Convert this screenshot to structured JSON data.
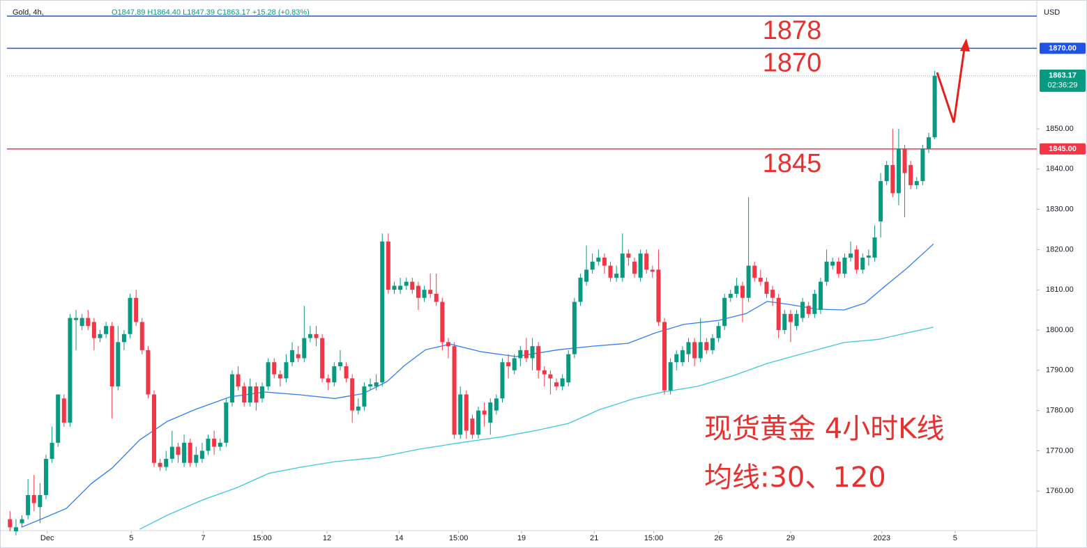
{
  "chart_data": {
    "type": "candlestick",
    "title": "Gold, 4h,",
    "ohlc_header": "O1847.89 H1864.40 L1847.39 C1863.17 +15.28 (+0.83%)",
    "currency": "USD",
    "countdown": "02:36:29",
    "up_color": "#089981",
    "down_color": "#f23645",
    "open": [
      1753,
      1750,
      1752,
      1754,
      1759,
      1756,
      1759,
      1768,
      1772,
      1783,
      1777,
      1802.5,
      1801,
      1803,
      1802,
      1798,
      1799,
      1801,
      1786,
      1797,
      1799,
      1808,
      1802,
      1795,
      1784,
      1767,
      1766,
      1768,
      1771,
      1767,
      1772,
      1767,
      1768,
      1770,
      1773,
      1771,
      1772,
      1782,
      1789,
      1786,
      1782,
      1786,
      1783,
      1786,
      1792,
      1789,
      1788,
      1792,
      1794,
      1793,
      1798,
      1799,
      1798,
      1788,
      1787,
      1791,
      1791,
      1788,
      1780,
      1781,
      1786,
      1786,
      1787,
      1822,
      1810,
      1810,
      1811,
      1812,
      1811,
      1808,
      1810,
      1809,
      1807,
      1797,
      1796,
      1774,
      1784,
      1778,
      1774,
      1780,
      1777,
      1780,
      1783,
      1792,
      1790,
      1793,
      1795,
      1793,
      1796,
      1790,
      1789,
      1787,
      1786,
      1787,
      1794,
      1807,
      1812,
      1815,
      1817,
      1818,
      1816,
      1813,
      1813,
      1819,
      1817,
      1813,
      1819,
      1815,
      1815,
      1802,
      1785,
      1792,
      1792,
      1794,
      1797,
      1793,
      1797,
      1795,
      1798,
      1801,
      1808,
      1809,
      1811,
      1808,
      1816,
      1813,
      1812,
      1810,
      1808,
      1800,
      1804,
      1801,
      1803,
      1806,
      1804,
      1805,
      1812,
      1816,
      1817,
      1814,
      1818,
      1820,
      1815,
      1818,
      1818,
      1827,
      1837,
      1841,
      1834,
      1845,
      1841,
      1836,
      1837,
      1845,
      1847.89
    ],
    "high": [
      1755,
      1753,
      1754,
      1763,
      1764,
      1762,
      1769,
      1776,
      1784,
      1784,
      1804,
      1805,
      1804,
      1805,
      1803,
      1800,
      1802,
      1802,
      1801,
      1800,
      1809,
      1810,
      1803,
      1796,
      1785,
      1768,
      1770,
      1775,
      1772,
      1774,
      1773,
      1771,
      1772,
      1774,
      1775,
      1773,
      1783,
      1790,
      1791,
      1787,
      1788,
      1787,
      1787,
      1793,
      1793,
      1790,
      1794,
      1797,
      1796,
      1806,
      1801,
      1801,
      1799,
      1789,
      1792,
      1795,
      1792,
      1789,
      1783,
      1787,
      1788,
      1789,
      1824,
      1824,
      1812,
      1813,
      1813,
      1813,
      1812,
      1811,
      1814,
      1814,
      1808,
      1798,
      1797,
      1786,
      1785,
      1779,
      1781,
      1782,
      1783,
      1784,
      1793,
      1794,
      1794,
      1796,
      1798,
      1798,
      1797,
      1791,
      1790,
      1788,
      1789,
      1795,
      1808,
      1814,
      1821,
      1819,
      1820,
      1819,
      1817,
      1816,
      1824,
      1820,
      1818,
      1820,
      1820,
      1816,
      1820,
      1803,
      1793,
      1795,
      1796,
      1798,
      1798,
      1803,
      1798,
      1799,
      1802,
      1809,
      1810,
      1813,
      1812,
      1833,
      1817,
      1815,
      1813,
      1811,
      1809,
      1805,
      1805,
      1805,
      1808,
      1807,
      1810,
      1813,
      1820,
      1818,
      1818,
      1819,
      1822,
      1821,
      1819,
      1820,
      1826,
      1839,
      1842,
      1850,
      1850,
      1846,
      1842,
      1838,
      1846,
      1849,
      1864.4
    ],
    "low": [
      1750,
      1749,
      1751,
      1753,
      1755,
      1752,
      1758,
      1767,
      1771,
      1776,
      1776,
      1795,
      1800,
      1800,
      1795,
      1797,
      1798,
      1778,
      1785,
      1795,
      1798,
      1801,
      1794,
      1783,
      1766,
      1765,
      1765,
      1767,
      1767,
      1766,
      1766,
      1766,
      1767,
      1769,
      1769,
      1770,
      1771,
      1781,
      1785,
      1781,
      1781,
      1780,
      1782,
      1785,
      1788,
      1786,
      1787,
      1791,
      1792,
      1792,
      1797,
      1796,
      1787,
      1785,
      1786,
      1790,
      1787,
      1777,
      1779,
      1780,
      1785,
      1785,
      1786,
      1809,
      1809,
      1809,
      1810,
      1809,
      1805,
      1807,
      1808,
      1806,
      1795,
      1793,
      1773,
      1773,
      1773,
      1773,
      1773,
      1776,
      1774,
      1779,
      1782,
      1788,
      1789,
      1791,
      1792,
      1790,
      1788,
      1786,
      1784,
      1785,
      1785,
      1786,
      1793,
      1806,
      1811,
      1814,
      1816,
      1814,
      1812,
      1812,
      1812,
      1816,
      1813,
      1812,
      1814,
      1813,
      1801,
      1784,
      1784,
      1790,
      1791,
      1792,
      1791,
      1792,
      1794,
      1794,
      1797,
      1800,
      1807,
      1808,
      1802,
      1807,
      1812,
      1811,
      1808,
      1806,
      1798,
      1799,
      1797,
      1800,
      1802,
      1803,
      1803,
      1804,
      1811,
      1815,
      1813,
      1813,
      1817,
      1814,
      1814,
      1816,
      1817,
      1823,
      1836,
      1833,
      1831,
      1828,
      1835,
      1835,
      1836,
      1844,
      1847.39
    ],
    "close": [
      1751,
      1751,
      1753,
      1759,
      1757,
      1759,
      1768,
      1772,
      1784,
      1777,
      1803,
      1803,
      1803,
      1801,
      1798,
      1799,
      1801,
      1786,
      1797,
      1799,
      1808,
      1802,
      1795,
      1784,
      1767,
      1766,
      1768,
      1771,
      1769,
      1772,
      1767,
      1769,
      1770,
      1773,
      1771,
      1772,
      1782,
      1789,
      1786,
      1782,
      1786,
      1782,
      1786,
      1792,
      1789,
      1788,
      1792,
      1795,
      1793,
      1798,
      1799,
      1798,
      1788,
      1787,
      1791,
      1792,
      1788,
      1780,
      1781,
      1786,
      1786.5,
      1787,
      1822,
      1810,
      1811,
      1811,
      1812,
      1810,
      1808,
      1810,
      1809,
      1807,
      1797,
      1796,
      1774,
      1784,
      1775,
      1774,
      1780,
      1779,
      1782,
      1783,
      1792,
      1791,
      1793,
      1795,
      1793,
      1796,
      1790,
      1789,
      1788,
      1786,
      1788,
      1794,
      1807,
      1813,
      1815,
      1817,
      1818,
      1816,
      1813,
      1814,
      1819,
      1818,
      1814,
      1819,
      1815,
      1814.5,
      1802,
      1785,
      1792,
      1794,
      1795,
      1797,
      1793,
      1797,
      1795,
      1798,
      1801,
      1808,
      1809,
      1811,
      1808,
      1816,
      1813,
      1812,
      1809,
      1808,
      1800,
      1804,
      1802,
      1804,
      1807,
      1804,
      1809,
      1812,
      1817,
      1817,
      1814,
      1818,
      1819,
      1815,
      1818,
      1818.5,
      1823,
      1837,
      1841,
      1834,
      1845,
      1839,
      1836,
      1837,
      1845,
      1847.89,
      1863.17
    ],
    "series": [
      {
        "color": "#2f7ef0",
        "x": [
          1.9,
          5.3,
          9.4,
          13.5,
          17,
          21.6,
          26.2,
          30.9,
          36.7,
          42.5,
          48.3,
          54.1,
          58.8,
          62.8,
          65.7,
          69.2,
          73.3,
          78.5,
          84.3,
          91.3,
          97.1,
          102.9,
          107.5,
          112.2,
          118,
          122.6,
          126.1,
          129.6,
          134.3,
          138.9,
          142.4,
          145.9,
          149.4,
          153.8
        ],
        "values": [
          1751.0,
          1753.1,
          1755.7,
          1761.8,
          1765.7,
          1772.7,
          1777.3,
          1780.3,
          1783.4,
          1784.6,
          1783.9,
          1783.0,
          1784.2,
          1787.2,
          1791.2,
          1795.1,
          1796.5,
          1794.6,
          1793.4,
          1795.1,
          1796.0,
          1796.7,
          1799.3,
          1801.4,
          1802.4,
          1804.1,
          1807.1,
          1806.4,
          1805.2,
          1805.0,
          1806.7,
          1811.1,
          1815.4,
          1821.4
        ]
      },
      {
        "color": "#3fc6e0",
        "x": [
          21.6,
          26.2,
          32.1,
          37.9,
          43.1,
          48.3,
          54.1,
          61.1,
          68.1,
          75,
          82,
          87.8,
          93,
          98.3,
          104,
          108.7,
          114.5,
          120.3,
          126.1,
          131.9,
          138.9,
          144.7,
          149.4,
          153.8
        ],
        "values": [
          1750.5,
          1754.0,
          1757.8,
          1760.9,
          1764.4,
          1765.9,
          1767.3,
          1768.3,
          1770.4,
          1772.0,
          1773.5,
          1775.1,
          1776.8,
          1780.3,
          1783.0,
          1784.6,
          1786.0,
          1788.6,
          1791.7,
          1794.1,
          1796.9,
          1797.7,
          1799.3,
          1800.7
        ]
      }
    ],
    "levels": [
      {
        "value": 1878,
        "color": "#1e53e5"
      },
      {
        "value": 1870,
        "label": "1870.00",
        "color": "#1e53e5"
      },
      {
        "value": 1845,
        "label": "1845.00",
        "color": "#f23645"
      }
    ],
    "annotations": [
      "现货黄金 4小时K线",
      "均线:30、120"
    ],
    "xlim": [
      -0.5,
      171
    ],
    "xticks": [
      {
        "value": 6.2,
        "label": "Dec"
      },
      {
        "value": 20.2,
        "label": "5"
      },
      {
        "value": 32.2,
        "label": "7"
      },
      {
        "value": 42,
        "label": "15:00"
      },
      {
        "value": 52.8,
        "label": "12"
      },
      {
        "value": 64.8,
        "label": "14"
      },
      {
        "value": 74.7,
        "label": "15:00"
      },
      {
        "value": 85.2,
        "label": "19"
      },
      {
        "value": 97.3,
        "label": "21"
      },
      {
        "value": 107.2,
        "label": "15:00"
      },
      {
        "value": 118,
        "label": "26"
      },
      {
        "value": 130,
        "label": "29"
      },
      {
        "value": 145.2,
        "label": "2023"
      },
      {
        "value": 157.4,
        "label": "5"
      }
    ],
    "ylim": [
      1750,
      1882
    ],
    "yticks": [
      {
        "value": 1760,
        "label": "1760.00"
      },
      {
        "value": 1770,
        "label": "1770.00"
      },
      {
        "value": 1780,
        "label": "1780.00"
      },
      {
        "value": 1790,
        "label": "1790.00"
      },
      {
        "value": 1800,
        "label": "1800.00"
      },
      {
        "value": 1810,
        "label": "1810.00"
      },
      {
        "value": 1820,
        "label": "1820.00"
      },
      {
        "value": 1830,
        "label": "1830.00"
      },
      {
        "value": 1840,
        "label": "1840.00"
      },
      {
        "value": 1850,
        "label": "1850.00"
      }
    ]
  }
}
